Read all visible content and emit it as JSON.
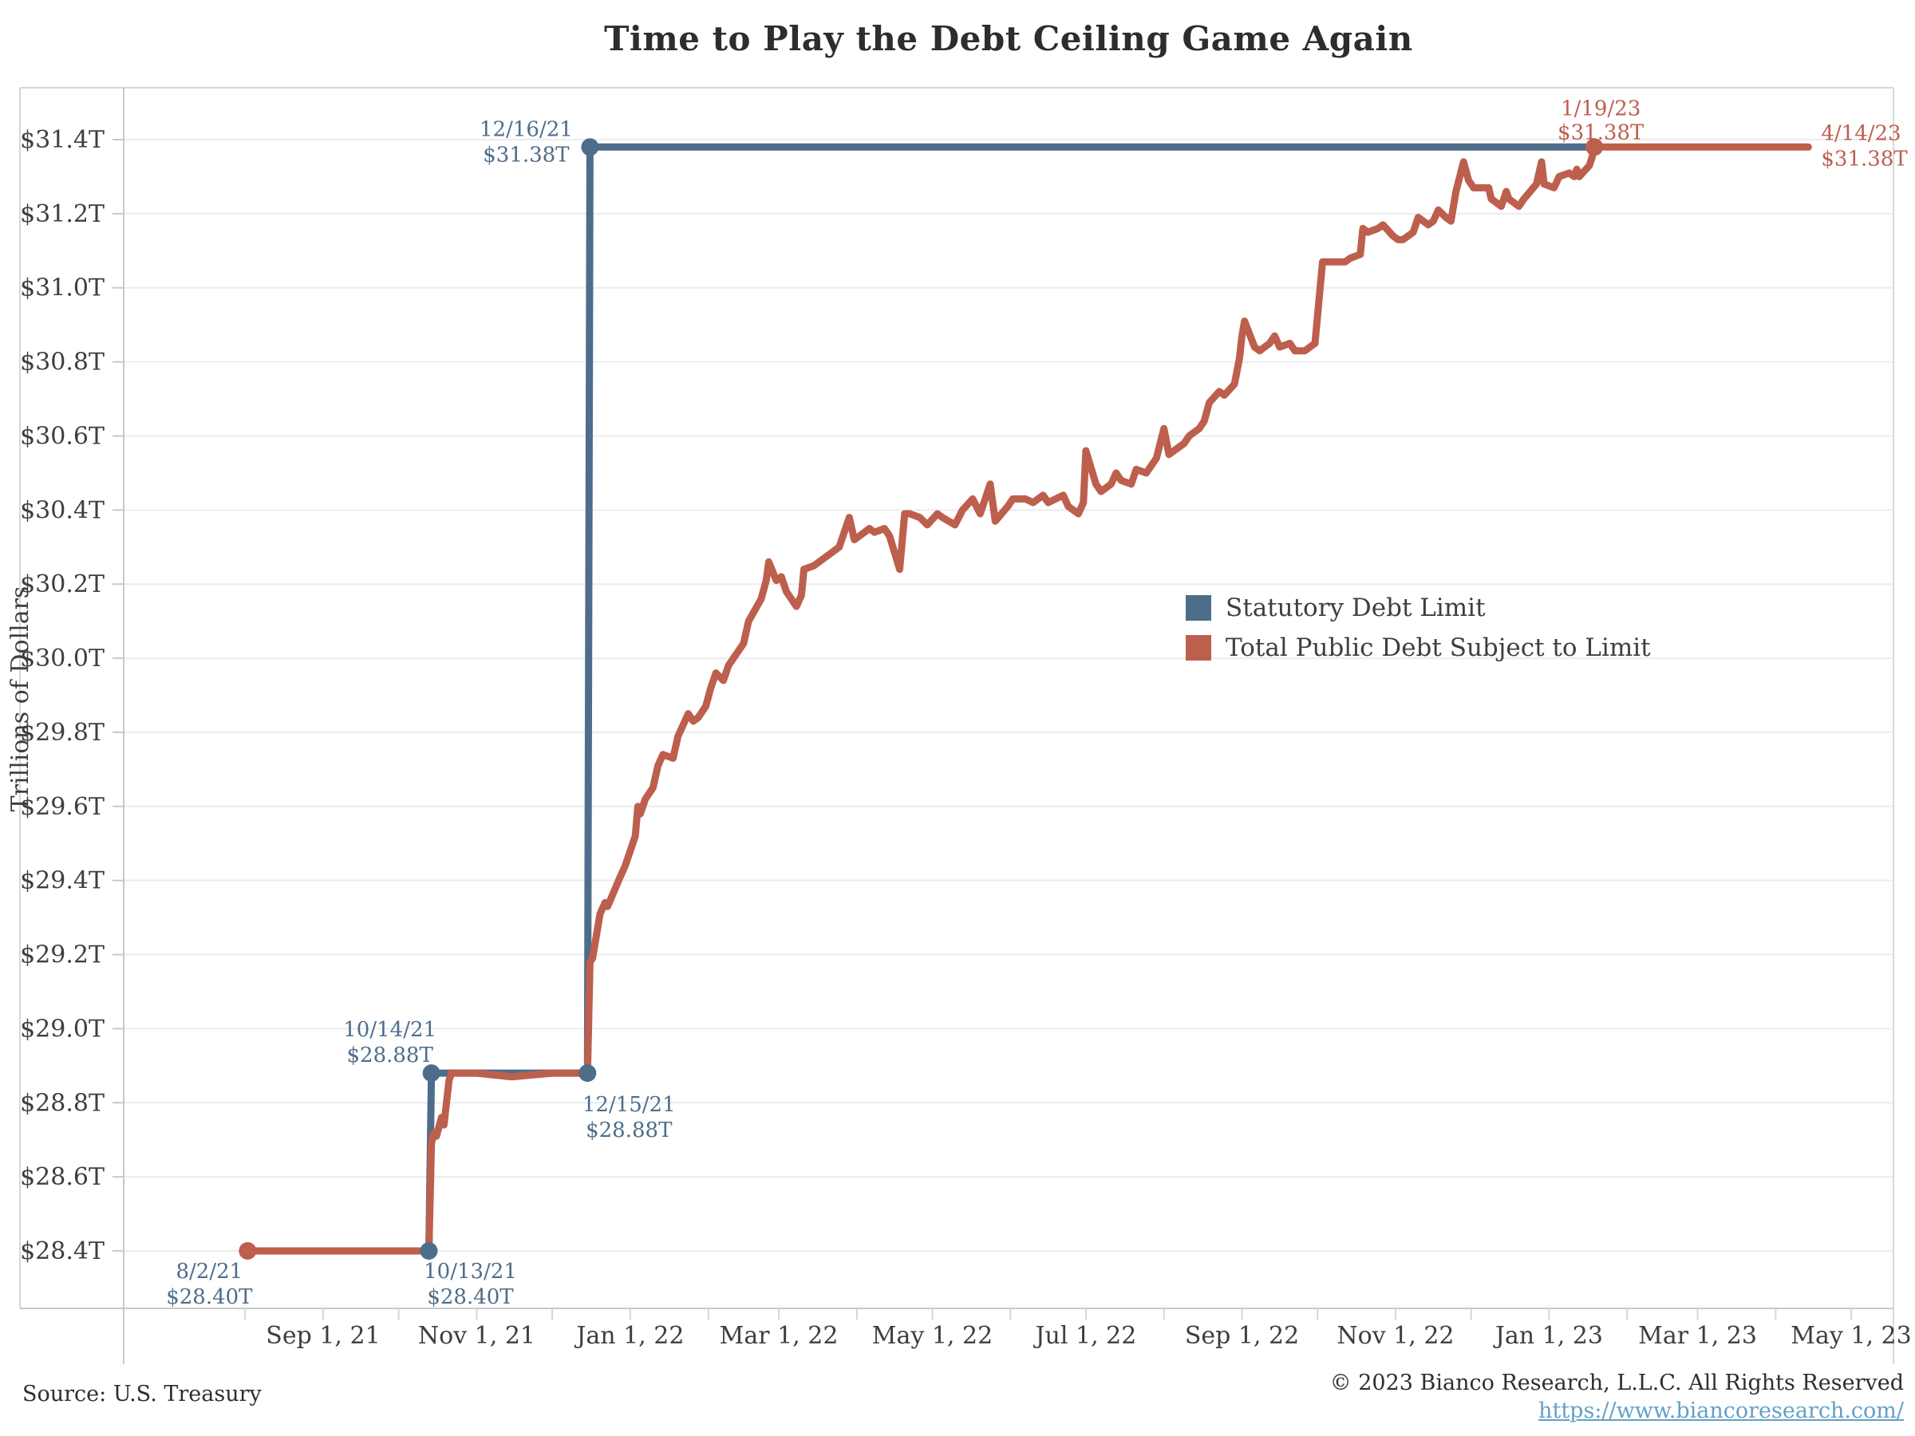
{
  "title": "Time to Play the Debt Ceiling Game Again",
  "y_axis_title": "Trillions of Dollars",
  "source_note": "Source: U.S. Treasury",
  "copyright_line": "© 2023 Bianco Research, L.L.C. All Rights Reserved",
  "link_text": "https://www.biancoresearch.com/",
  "colors": {
    "limit_blue": "#4d6d8b",
    "debt_red": "#bd5f4d",
    "grid": "#ececec",
    "frame": "#d8d8d8",
    "axis": "#c9c9c9",
    "tick_text": "#3e3e3e",
    "link_blue": "#63a0c6",
    "background": "#ffffff"
  },
  "legend": {
    "items": [
      {
        "label": "Statutory Debt Limit",
        "color": "#4d6d8b"
      },
      {
        "label": "Total Public Debt Subject to Limit",
        "color": "#bd5f4d"
      }
    ]
  },
  "chart_data": {
    "type": "line",
    "title": "Time to Play the Debt Ceiling Game Again",
    "xlabel": "",
    "ylabel": "Trillions of Dollars",
    "ylim": [
      28.4,
      31.47
    ],
    "y_tick_values": [
      28.4,
      28.6,
      28.8,
      29.0,
      29.2,
      29.4,
      29.6,
      29.8,
      30.0,
      30.2,
      30.4,
      30.6,
      30.8,
      31.0,
      31.2,
      31.4
    ],
    "y_tick_format": "$#.#T",
    "x_ticks": [
      {
        "label": "Sep 1, 21",
        "date": "2021-09-01"
      },
      {
        "label": "Nov 1, 21",
        "date": "2021-11-01"
      },
      {
        "label": "Jan 1, 22",
        "date": "2022-01-01"
      },
      {
        "label": "Mar 1, 22",
        "date": "2022-03-01"
      },
      {
        "label": "May 1, 22",
        "date": "2022-05-01"
      },
      {
        "label": "Jul 1, 22",
        "date": "2022-07-01"
      },
      {
        "label": "Sep 1, 22",
        "date": "2022-09-01"
      },
      {
        "label": "Nov 1, 22",
        "date": "2022-11-01"
      },
      {
        "label": "Jan 1, 23",
        "date": "2023-01-01"
      },
      {
        "label": "Mar 1, 23",
        "date": "2023-03-01"
      },
      {
        "label": "May 1, 23",
        "date": "2023-05-01"
      }
    ],
    "minor_x_ticks_every_month_from": "2021-08-01",
    "minor_x_ticks_every_month_to": "2023-05-01",
    "grid": "horizontal",
    "legend_position": "center-right",
    "series": [
      {
        "name": "Statutory Debt Limit",
        "color": "#4d6d8b",
        "points": [
          [
            "2021-08-02",
            28.4
          ],
          [
            "2021-10-13",
            28.4
          ],
          [
            "2021-10-14",
            28.88
          ],
          [
            "2021-12-15",
            28.88
          ],
          [
            "2021-12-16",
            31.38
          ],
          [
            "2023-01-19",
            31.38
          ]
        ],
        "markers": [
          [
            "2021-10-13",
            28.4
          ],
          [
            "2021-10-14",
            28.88
          ],
          [
            "2021-12-15",
            28.88
          ],
          [
            "2021-12-16",
            31.38
          ]
        ]
      },
      {
        "name": "Total Public Debt Subject to Limit",
        "color": "#bd5f4d",
        "points": [
          [
            "2021-08-02",
            28.4
          ],
          [
            "2021-08-16",
            28.4
          ],
          [
            "2021-09-01",
            28.4
          ],
          [
            "2021-09-15",
            28.4
          ],
          [
            "2021-10-01",
            28.4
          ],
          [
            "2021-10-08",
            28.4
          ],
          [
            "2021-10-13",
            28.4
          ],
          [
            "2021-10-14",
            28.69
          ],
          [
            "2021-10-15",
            28.72
          ],
          [
            "2021-10-16",
            28.71
          ],
          [
            "2021-10-18",
            28.76
          ],
          [
            "2021-10-19",
            28.74
          ],
          [
            "2021-10-21",
            28.86
          ],
          [
            "2021-10-22",
            28.88
          ],
          [
            "2021-11-01",
            28.88
          ],
          [
            "2021-11-15",
            28.87
          ],
          [
            "2021-12-01",
            28.88
          ],
          [
            "2021-12-15",
            28.88
          ],
          [
            "2021-12-16",
            29.18
          ],
          [
            "2021-12-17",
            29.19
          ],
          [
            "2021-12-20",
            29.31
          ],
          [
            "2021-12-22",
            29.34
          ],
          [
            "2021-12-23",
            29.33
          ],
          [
            "2021-12-28",
            29.41
          ],
          [
            "2021-12-30",
            29.44
          ],
          [
            "2022-01-03",
            29.52
          ],
          [
            "2022-01-04",
            29.6
          ],
          [
            "2022-01-05",
            29.58
          ],
          [
            "2022-01-07",
            29.62
          ],
          [
            "2022-01-10",
            29.65
          ],
          [
            "2022-01-12",
            29.71
          ],
          [
            "2022-01-14",
            29.74
          ],
          [
            "2022-01-18",
            29.73
          ],
          [
            "2022-01-20",
            29.79
          ],
          [
            "2022-01-24",
            29.85
          ],
          [
            "2022-01-26",
            29.83
          ],
          [
            "2022-01-28",
            29.84
          ],
          [
            "2022-01-31",
            29.87
          ],
          [
            "2022-02-02",
            29.92
          ],
          [
            "2022-02-04",
            29.96
          ],
          [
            "2022-02-07",
            29.94
          ],
          [
            "2022-02-09",
            29.98
          ],
          [
            "2022-02-11",
            30.0
          ],
          [
            "2022-02-15",
            30.04
          ],
          [
            "2022-02-17",
            30.1
          ],
          [
            "2022-02-22",
            30.16
          ],
          [
            "2022-02-24",
            30.21
          ],
          [
            "2022-02-25",
            30.26
          ],
          [
            "2022-02-28",
            30.21
          ],
          [
            "2022-03-02",
            30.22
          ],
          [
            "2022-03-04",
            30.18
          ],
          [
            "2022-03-08",
            30.14
          ],
          [
            "2022-03-10",
            30.17
          ],
          [
            "2022-03-11",
            30.24
          ],
          [
            "2022-03-15",
            30.25
          ],
          [
            "2022-03-17",
            30.26
          ],
          [
            "2022-03-21",
            30.28
          ],
          [
            "2022-03-23",
            30.29
          ],
          [
            "2022-03-25",
            30.3
          ],
          [
            "2022-03-29",
            30.38
          ],
          [
            "2022-03-31",
            30.32
          ],
          [
            "2022-04-04",
            30.34
          ],
          [
            "2022-04-06",
            30.35
          ],
          [
            "2022-04-08",
            30.34
          ],
          [
            "2022-04-12",
            30.35
          ],
          [
            "2022-04-14",
            30.33
          ],
          [
            "2022-04-18",
            30.24
          ],
          [
            "2022-04-20",
            30.39
          ],
          [
            "2022-04-22",
            30.39
          ],
          [
            "2022-04-26",
            30.38
          ],
          [
            "2022-04-29",
            30.36
          ],
          [
            "2022-05-03",
            30.39
          ],
          [
            "2022-05-05",
            30.38
          ],
          [
            "2022-05-10",
            30.36
          ],
          [
            "2022-05-13",
            30.4
          ],
          [
            "2022-05-17",
            30.43
          ],
          [
            "2022-05-20",
            30.39
          ],
          [
            "2022-05-24",
            30.47
          ],
          [
            "2022-05-26",
            30.37
          ],
          [
            "2022-05-31",
            30.41
          ],
          [
            "2022-06-02",
            30.43
          ],
          [
            "2022-06-07",
            30.43
          ],
          [
            "2022-06-10",
            30.42
          ],
          [
            "2022-06-14",
            30.44
          ],
          [
            "2022-06-16",
            30.42
          ],
          [
            "2022-06-22",
            30.44
          ],
          [
            "2022-06-24",
            30.41
          ],
          [
            "2022-06-28",
            30.39
          ],
          [
            "2022-06-30",
            30.42
          ],
          [
            "2022-07-01",
            30.56
          ],
          [
            "2022-07-05",
            30.47
          ],
          [
            "2022-07-07",
            30.45
          ],
          [
            "2022-07-11",
            30.47
          ],
          [
            "2022-07-13",
            30.5
          ],
          [
            "2022-07-15",
            30.48
          ],
          [
            "2022-07-19",
            30.47
          ],
          [
            "2022-07-21",
            30.51
          ],
          [
            "2022-07-25",
            30.5
          ],
          [
            "2022-07-27",
            30.52
          ],
          [
            "2022-07-29",
            30.54
          ],
          [
            "2022-08-01",
            30.62
          ],
          [
            "2022-08-03",
            30.55
          ],
          [
            "2022-08-05",
            30.56
          ],
          [
            "2022-08-09",
            30.58
          ],
          [
            "2022-08-11",
            30.6
          ],
          [
            "2022-08-15",
            30.62
          ],
          [
            "2022-08-17",
            30.64
          ],
          [
            "2022-08-19",
            30.69
          ],
          [
            "2022-08-23",
            30.72
          ],
          [
            "2022-08-25",
            30.71
          ],
          [
            "2022-08-29",
            30.74
          ],
          [
            "2022-08-31",
            30.81
          ],
          [
            "2022-09-01",
            30.87
          ],
          [
            "2022-09-02",
            30.91
          ],
          [
            "2022-09-06",
            30.84
          ],
          [
            "2022-09-08",
            30.83
          ],
          [
            "2022-09-12",
            30.85
          ],
          [
            "2022-09-14",
            30.87
          ],
          [
            "2022-09-16",
            30.84
          ],
          [
            "2022-09-20",
            30.85
          ],
          [
            "2022-09-22",
            30.83
          ],
          [
            "2022-09-26",
            30.83
          ],
          [
            "2022-09-28",
            30.84
          ],
          [
            "2022-09-30",
            30.85
          ],
          [
            "2022-10-03",
            31.07
          ],
          [
            "2022-10-05",
            31.07
          ],
          [
            "2022-10-07",
            31.07
          ],
          [
            "2022-10-12",
            31.07
          ],
          [
            "2022-10-14",
            31.08
          ],
          [
            "2022-10-18",
            31.09
          ],
          [
            "2022-10-19",
            31.16
          ],
          [
            "2022-10-21",
            31.15
          ],
          [
            "2022-10-25",
            31.16
          ],
          [
            "2022-10-27",
            31.17
          ],
          [
            "2022-10-31",
            31.14
          ],
          [
            "2022-11-02",
            31.13
          ],
          [
            "2022-11-04",
            31.13
          ],
          [
            "2022-11-08",
            31.15
          ],
          [
            "2022-11-10",
            31.19
          ],
          [
            "2022-11-14",
            31.17
          ],
          [
            "2022-11-16",
            31.18
          ],
          [
            "2022-11-18",
            31.21
          ],
          [
            "2022-11-21",
            31.19
          ],
          [
            "2022-11-23",
            31.18
          ],
          [
            "2022-11-25",
            31.26
          ],
          [
            "2022-11-28",
            31.34
          ],
          [
            "2022-11-30",
            31.29
          ],
          [
            "2022-12-02",
            31.27
          ],
          [
            "2022-12-06",
            31.27
          ],
          [
            "2022-12-08",
            31.27
          ],
          [
            "2022-12-09",
            31.24
          ],
          [
            "2022-12-13",
            31.22
          ],
          [
            "2022-12-15",
            31.26
          ],
          [
            "2022-12-16",
            31.24
          ],
          [
            "2022-12-20",
            31.22
          ],
          [
            "2022-12-22",
            31.24
          ],
          [
            "2022-12-27",
            31.28
          ],
          [
            "2022-12-29",
            31.34
          ],
          [
            "2022-12-30",
            31.28
          ],
          [
            "2023-01-03",
            31.27
          ],
          [
            "2023-01-05",
            31.3
          ],
          [
            "2023-01-09",
            31.31
          ],
          [
            "2023-01-11",
            31.3
          ],
          [
            "2023-01-12",
            31.32
          ],
          [
            "2023-01-13",
            31.3
          ],
          [
            "2023-01-17",
            31.33
          ],
          [
            "2023-01-18",
            31.35
          ],
          [
            "2023-01-19",
            31.38
          ],
          [
            "2023-02-01",
            31.38
          ],
          [
            "2023-02-15",
            31.38
          ],
          [
            "2023-03-01",
            31.38
          ],
          [
            "2023-03-15",
            31.38
          ],
          [
            "2023-04-01",
            31.38
          ],
          [
            "2023-04-14",
            31.38
          ]
        ],
        "markers": [
          [
            "2021-08-02",
            28.4
          ],
          [
            "2023-01-19",
            31.38
          ]
        ]
      }
    ],
    "annotations": [
      {
        "series": "limit",
        "lines": [
          "8/2/21",
          "$28.40T"
        ],
        "date": "2021-08-02",
        "value": 28.4,
        "align": "middle",
        "dx": -48,
        "dy": [
          34,
          66
        ]
      },
      {
        "series": "limit",
        "lines": [
          "10/13/21",
          "$28.40T"
        ],
        "date": "2021-10-13",
        "value": 28.4,
        "align": "middle",
        "dx": 52,
        "dy": [
          34,
          66
        ]
      },
      {
        "series": "limit",
        "lines": [
          "10/14/21",
          "$28.88T"
        ],
        "date": "2021-10-14",
        "value": 28.88,
        "align": "middle",
        "dx": -52,
        "dy": [
          -46,
          -14
        ]
      },
      {
        "series": "limit",
        "lines": [
          "12/15/21",
          "$28.88T"
        ],
        "date": "2021-12-15",
        "value": 28.88,
        "align": "middle",
        "dx": 52,
        "dy": [
          48,
          80
        ]
      },
      {
        "series": "limit",
        "lines": [
          "12/16/21",
          "$31.38T"
        ],
        "date": "2021-12-16",
        "value": 31.38,
        "align": "middle",
        "dx": -80,
        "dy": [
          -14,
          18
        ]
      },
      {
        "series": "debt",
        "lines": [
          "1/19/23",
          "$31.38T"
        ],
        "date": "2023-01-19",
        "value": 31.38,
        "align": "middle",
        "dx": 8,
        "dy": [
          -40,
          -10
        ]
      },
      {
        "series": "debt",
        "lines": [
          "4/14/23",
          "$31.38T"
        ],
        "date": "2023-04-14",
        "value": 31.38,
        "align": "start",
        "dx": 16,
        "dy": [
          -9,
          23
        ]
      }
    ]
  }
}
